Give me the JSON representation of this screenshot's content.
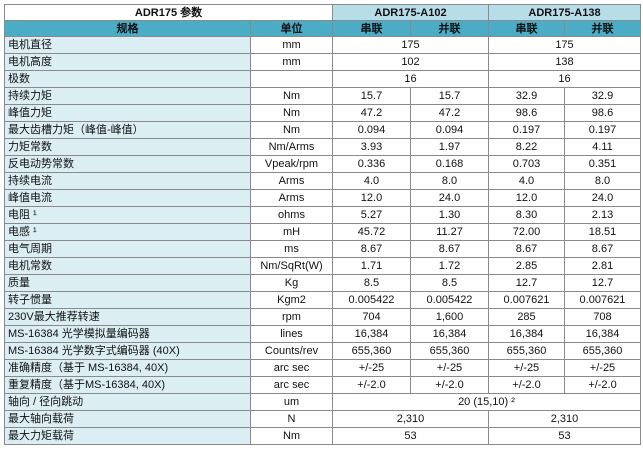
{
  "title": "ADR175 参数",
  "models": [
    "ADR175-A102",
    "ADR175-A138"
  ],
  "header": {
    "spec": "规格",
    "unit": "单位",
    "series": "串联",
    "parallel": "并联"
  },
  "rows": [
    {
      "label": "电机直径",
      "unit": "mm",
      "merge": "pair",
      "values": [
        "175",
        "175"
      ]
    },
    {
      "label": "电机高度",
      "unit": "mm",
      "merge": "pair",
      "values": [
        "102",
        "138"
      ]
    },
    {
      "label": "极数",
      "unit": "",
      "merge": "pair",
      "values": [
        "16",
        "16"
      ]
    },
    {
      "label": "持续力矩",
      "unit": "Nm",
      "merge": "none",
      "values": [
        "15.7",
        "15.7",
        "32.9",
        "32.9"
      ]
    },
    {
      "label": "峰值力矩",
      "unit": "Nm",
      "merge": "none",
      "values": [
        "47.2",
        "47.2",
        "98.6",
        "98.6"
      ]
    },
    {
      "label": "最大齿槽力矩（峰值-峰值）",
      "unit": "Nm",
      "merge": "none",
      "values": [
        "0.094",
        "0.094",
        "0.197",
        "0.197"
      ]
    },
    {
      "label": "力矩常数",
      "unit": "Nm/Arms",
      "merge": "none",
      "values": [
        "3.93",
        "1.97",
        "8.22",
        "4.11"
      ]
    },
    {
      "label": "反电动势常数",
      "unit": "Vpeak/rpm",
      "merge": "none",
      "values": [
        "0.336",
        "0.168",
        "0.703",
        "0.351"
      ]
    },
    {
      "label": "持续电流",
      "unit": "Arms",
      "merge": "none",
      "values": [
        "4.0",
        "8.0",
        "4.0",
        "8.0"
      ]
    },
    {
      "label": "峰值电流",
      "unit": "Arms",
      "merge": "none",
      "values": [
        "12.0",
        "24.0",
        "12.0",
        "24.0"
      ]
    },
    {
      "label": "电阻 ¹",
      "unit": "ohms",
      "merge": "none",
      "values": [
        "5.27",
        "1.30",
        "8.30",
        "2.13"
      ]
    },
    {
      "label": "电感 ¹",
      "unit": "mH",
      "merge": "none",
      "values": [
        "45.72",
        "11.27",
        "72.00",
        "18.51"
      ]
    },
    {
      "label": "电气周期",
      "unit": "ms",
      "merge": "none",
      "values": [
        "8.67",
        "8.67",
        "8.67",
        "8.67"
      ]
    },
    {
      "label": "电机常数",
      "unit": "Nm/SqRt(W)",
      "merge": "none",
      "values": [
        "1.71",
        "1.72",
        "2.85",
        "2.81"
      ]
    },
    {
      "label": "质量",
      "unit": "Kg",
      "merge": "none",
      "values": [
        "8.5",
        "8.5",
        "12.7",
        "12.7"
      ]
    },
    {
      "label": "转子惯量",
      "unit": "Kgm2",
      "merge": "none",
      "values": [
        "0.005422",
        "0.005422",
        "0.007621",
        "0.007621"
      ]
    },
    {
      "label": "230V最大推荐转速",
      "unit": "rpm",
      "merge": "none",
      "values": [
        "704",
        "1,600",
        "285",
        "708"
      ]
    },
    {
      "label": "MS-16384 光学模拟量编码器",
      "unit": "lines",
      "merge": "none",
      "values": [
        "16,384",
        "16,384",
        "16,384",
        "16,384"
      ]
    },
    {
      "label": "MS-16384 光学数字式编码器 (40X)",
      "unit": "Counts/rev",
      "merge": "none",
      "values": [
        "655,360",
        "655,360",
        "655,360",
        "655,360"
      ]
    },
    {
      "label": "准确精度（基于 MS-16384, 40X)",
      "unit": "arc sec",
      "merge": "none",
      "values": [
        "+/-25",
        "+/-25",
        "+/-25",
        "+/-25"
      ]
    },
    {
      "label": "重复精度（基于MS-16384, 40X)",
      "unit": "arc sec",
      "merge": "none",
      "values": [
        "+/-2.0",
        "+/-2.0",
        "+/-2.0",
        "+/-2.0"
      ]
    },
    {
      "label": "轴向 / 径向跳动",
      "unit": "um",
      "merge": "all",
      "values": [
        "20 (15,10) ²"
      ]
    },
    {
      "label": "最大轴向载荷",
      "unit": "N",
      "merge": "pair",
      "values": [
        "2,310",
        "2,310"
      ]
    },
    {
      "label": "最大力矩载荷",
      "unit": "Nm",
      "merge": "pair",
      "values": [
        "53",
        "53"
      ]
    }
  ]
}
